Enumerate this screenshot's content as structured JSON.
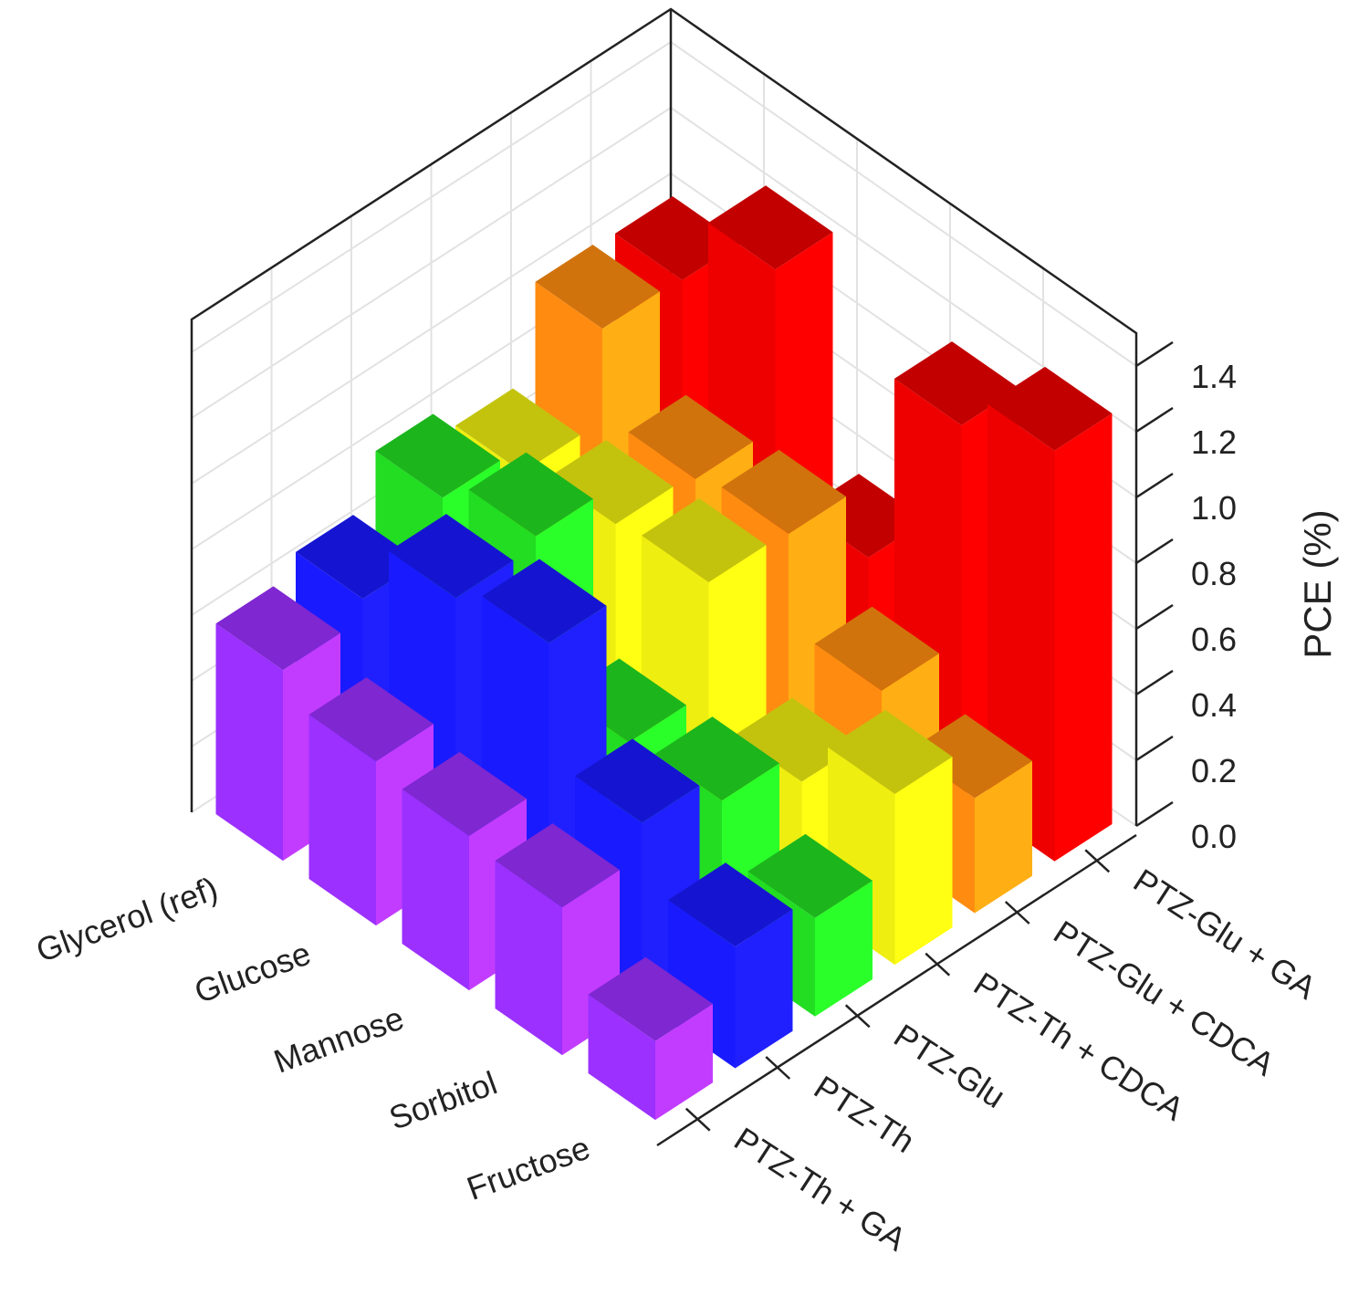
{
  "chart_data": {
    "type": "bar3d",
    "z_label": "PCE (%)",
    "categories": [
      "Glycerol (ref)",
      "Glucose",
      "Mannose",
      "Sorbitol",
      "Fructose"
    ],
    "series": [
      {
        "name": "PTZ-Th + GA",
        "color": "#9b30ff",
        "values": [
          0.58,
          0.5,
          0.47,
          0.45,
          0.24
        ]
      },
      {
        "name": "PTZ-Th",
        "color": "#1a1aff",
        "values": [
          0.64,
          0.84,
          0.9,
          0.55,
          0.37
        ]
      },
      {
        "name": "PTZ-Glu",
        "color": "#22dd22",
        "values": [
          0.79,
          0.87,
          0.44,
          0.46,
          0.3
        ]
      },
      {
        "name": "PTZ-Th + CDCA",
        "color": "#eeee10",
        "values": [
          0.71,
          0.75,
          0.77,
          0.36,
          0.52
        ]
      },
      {
        "name": "PTZ-Glu + CDCA",
        "color": "#ff8c10",
        "values": [
          0.99,
          0.73,
          0.76,
          0.48,
          0.35
        ]
      },
      {
        "name": "PTZ-Glu + GA",
        "color": "#ee0000",
        "values": [
          0.98,
          1.21,
          0.53,
          1.13,
          1.25
        ]
      }
    ],
    "ylim": [
      0,
      1.5
    ],
    "yticks": [
      {
        "value": 0,
        "label": "0.0"
      },
      0.2,
      0.4,
      0.6,
      0.8,
      {
        "value": 1,
        "label": "1.0"
      },
      1.2,
      1.4
    ],
    "grid": true
  }
}
